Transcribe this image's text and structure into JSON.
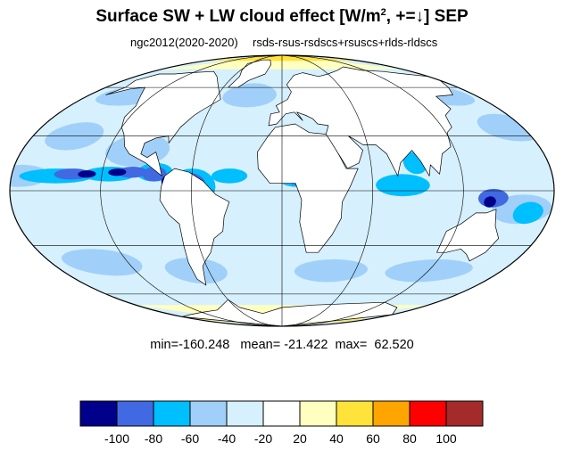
{
  "title": {
    "main": "Surface SW + LW cloud effect [W/m",
    "exp": "2",
    "tail": ", +=↓]  SEP"
  },
  "subtitle": {
    "left": "ngc2012(2020-2020)",
    "right": "rsds-rsus-rsdscs+rsuscs+rlds-rldscs"
  },
  "stats": {
    "min_label": "min=",
    "min": "-160.248",
    "mean_label": "mean=",
    "mean": "-21.422",
    "max_label": "max=",
    "max": "62.520"
  },
  "colorbar": {
    "labels": [
      "-100",
      "-80",
      "-60",
      "-40",
      "-20",
      "20",
      "40",
      "60",
      "80",
      "100"
    ],
    "colors": [
      "#00008b",
      "#4169e1",
      "#00bfff",
      "#a0d0fa",
      "#d6f0fd",
      "#ffffff",
      "#ffffc0",
      "#ffe23a",
      "#ffa500",
      "#ff0000",
      "#a52a2a"
    ]
  },
  "map": {
    "projection": "mollweide",
    "ocean_color": "#d6f0fd",
    "land_color": "#ffffff",
    "parallels": [
      -60,
      -30,
      0,
      30,
      60
    ],
    "meridians": [
      -120,
      -60,
      0,
      60,
      120
    ]
  }
}
